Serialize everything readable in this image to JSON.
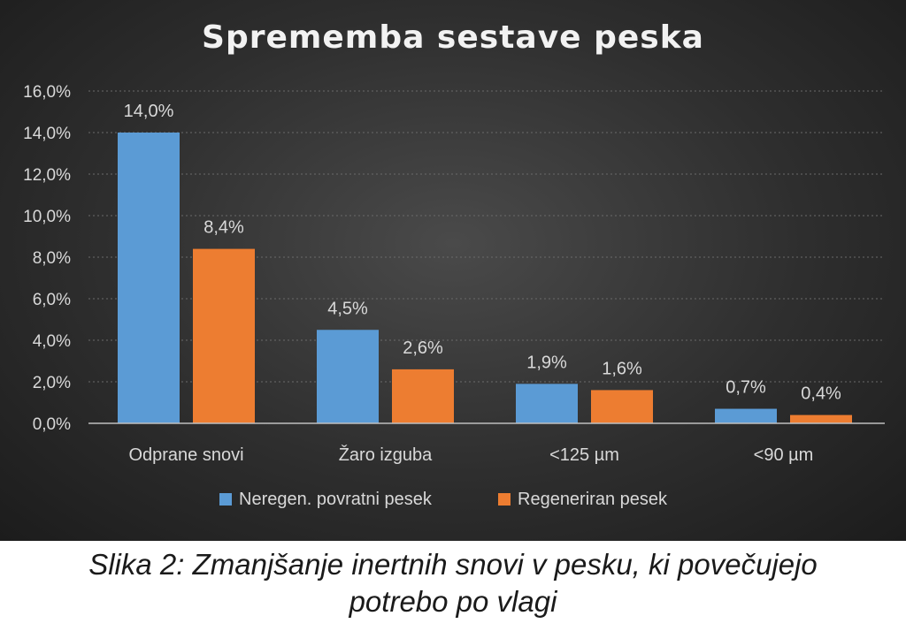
{
  "chart_data": {
    "type": "bar",
    "title": "Sprememba sestave peska",
    "categories": [
      "Odprane snovi",
      "Žaro izguba",
      "<125 µm",
      "<90 µm"
    ],
    "series": [
      {
        "name": "Neregen. povratni pesek",
        "color": "#5b9bd5",
        "values": [
          14.0,
          4.5,
          1.9,
          0.7
        ],
        "labels": [
          "14,0%",
          "4,5%",
          "1,9%",
          "0,7%"
        ]
      },
      {
        "name": "Regeneriran pesek",
        "color": "#ed7d31",
        "values": [
          8.4,
          2.6,
          1.6,
          0.4
        ],
        "labels": [
          "8,4%",
          "2,6%",
          "1,6%",
          "0,4%"
        ]
      }
    ],
    "ylim": [
      0,
      16
    ],
    "yticks": [
      0,
      2,
      4,
      6,
      8,
      10,
      12,
      14,
      16
    ],
    "ytick_labels": [
      "0,0%",
      "2,0%",
      "4,0%",
      "6,0%",
      "8,0%",
      "10,0%",
      "12,0%",
      "14,0%",
      "16,0%"
    ],
    "xlabel": "",
    "ylabel": "",
    "grid": true,
    "legend_position": "bottom-center"
  },
  "caption": {
    "line1": "Slika 2: Zmanjšanje inertnih snovi v pesku, ki povečujejo",
    "line2": "potrebo po vlagi"
  }
}
